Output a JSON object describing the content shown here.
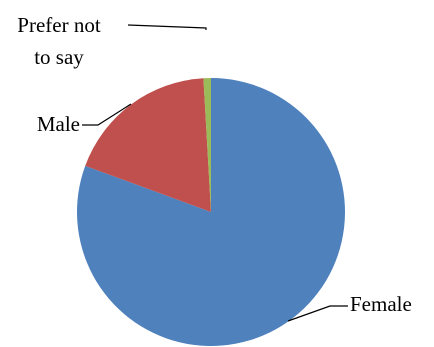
{
  "chart_data": {
    "type": "pie",
    "title": "",
    "legend": "none",
    "start_angle_deg": 0,
    "direction": "clockwise",
    "slices": [
      {
        "label": "Female",
        "value": 80.6,
        "color": "#4F81BD"
      },
      {
        "label": "Male",
        "value": 18.5,
        "color": "#C0504D"
      },
      {
        "label_lines": [
          "Prefer not",
          "to say"
        ],
        "value": 0.9,
        "color": "#9BBB59"
      }
    ]
  }
}
